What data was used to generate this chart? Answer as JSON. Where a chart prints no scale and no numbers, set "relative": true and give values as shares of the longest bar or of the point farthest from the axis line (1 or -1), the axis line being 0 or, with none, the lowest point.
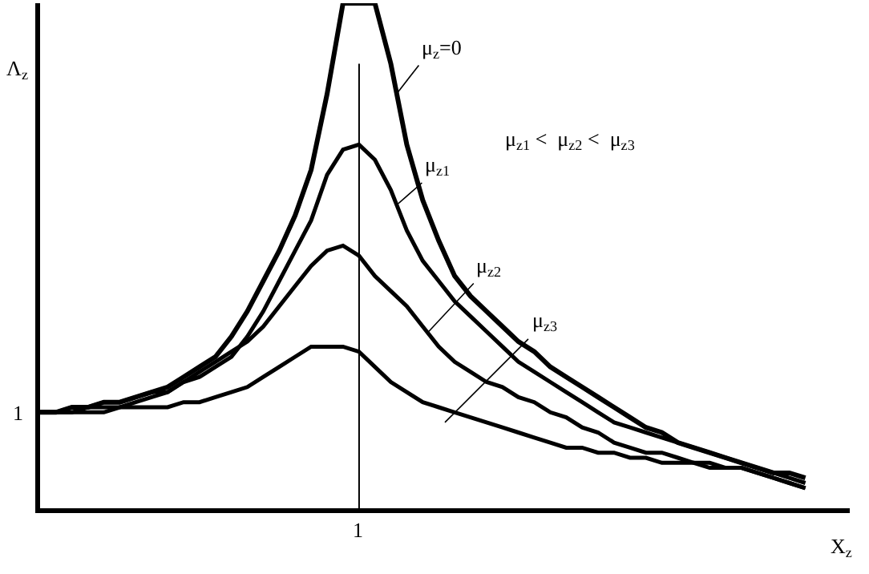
{
  "chart_data": {
    "type": "line",
    "relative": true,
    "xlabel": "X$_{z}$",
    "ylabel": "Λ$_{z}$",
    "line_style": "solid",
    "categories": [
      null,
      null,
      null,
      null,
      null,
      null,
      null,
      null,
      null,
      null,
      null,
      null,
      null,
      null,
      null,
      null,
      null,
      null,
      null,
      null,
      null,
      null,
      null,
      null,
      null,
      null,
      null,
      null,
      null,
      null,
      null,
      null,
      null,
      null,
      null,
      null,
      null,
      null,
      null,
      null,
      null,
      null,
      null,
      null,
      null,
      null,
      null,
      null,
      null
    ],
    "series": [
      {
        "color": "#000000",
        "values": [
          0.19,
          0.19,
          0.2,
          0.2,
          0.21,
          0.21,
          0.22,
          0.23,
          0.24,
          0.26,
          0.28,
          0.3,
          0.34,
          0.39,
          0.45,
          0.51,
          0.58,
          0.67,
          0.82,
          1,
          1,
          1,
          0.88,
          0.72,
          0.61,
          0.53,
          0.46,
          0.42,
          0.39,
          0.36,
          0.33,
          0.31,
          0.28,
          0.26,
          0.24,
          0.22,
          0.2,
          0.18,
          0.16,
          0.15,
          0.13,
          0.12,
          0.11,
          0.1,
          0.09,
          0.08,
          0.07,
          0.07,
          0.06
        ]
      },
      {
        "color": "#000000",
        "values": [
          0.19,
          0.19,
          0.2,
          0.2,
          0.21,
          0.21,
          0.22,
          0.23,
          0.23,
          0.25,
          0.26,
          0.28,
          0.3,
          0.34,
          0.39,
          0.45,
          0.51,
          0.57,
          0.66,
          0.71,
          0.72,
          0.69,
          0.63,
          0.55,
          0.49,
          0.45,
          0.41,
          0.38,
          0.35,
          0.32,
          0.29,
          0.27,
          0.25,
          0.23,
          0.21,
          0.19,
          0.17,
          0.16,
          0.15,
          0.14,
          0.13,
          0.12,
          0.11,
          0.1,
          0.09,
          0.08,
          0.07,
          0.06,
          0.05
        ]
      },
      {
        "color": "#000000",
        "values": [
          0.19,
          0.19,
          0.19,
          0.2,
          0.2,
          0.2,
          0.21,
          0.22,
          0.23,
          0.25,
          0.27,
          0.29,
          0.31,
          0.33,
          0.36,
          0.4,
          0.44,
          0.48,
          0.51,
          0.52,
          0.5,
          0.46,
          0.43,
          0.4,
          0.36,
          0.32,
          0.29,
          0.27,
          0.25,
          0.24,
          0.22,
          0.21,
          0.19,
          0.18,
          0.16,
          0.15,
          0.13,
          0.12,
          0.11,
          0.11,
          0.1,
          0.09,
          0.09,
          0.08,
          0.08,
          0.07,
          0.06,
          0.05,
          0.04
        ]
      },
      {
        "color": "#000000",
        "values": [
          0.19,
          0.19,
          0.19,
          0.19,
          0.19,
          0.2,
          0.2,
          0.2,
          0.2,
          0.21,
          0.21,
          0.22,
          0.23,
          0.24,
          0.26,
          0.28,
          0.3,
          0.32,
          0.32,
          0.32,
          0.31,
          0.28,
          0.25,
          0.23,
          0.21,
          0.2,
          0.19,
          0.18,
          0.17,
          0.16,
          0.15,
          0.14,
          0.13,
          0.12,
          0.12,
          0.11,
          0.11,
          0.1,
          0.1,
          0.09,
          0.09,
          0.09,
          0.08,
          0.08,
          0.08,
          0.07,
          0.06,
          0.05,
          0.04
        ]
      }
    ],
    "annotations": [
      "μ$_{z}$=0",
      "μ$_{z1}$",
      "μ$_{z2}$",
      "μ$_{z3}$",
      "μ$_{z1}$ <  μ$_{z2}$ <  μ$_{z3}$",
      "1",
      "1"
    ]
  }
}
